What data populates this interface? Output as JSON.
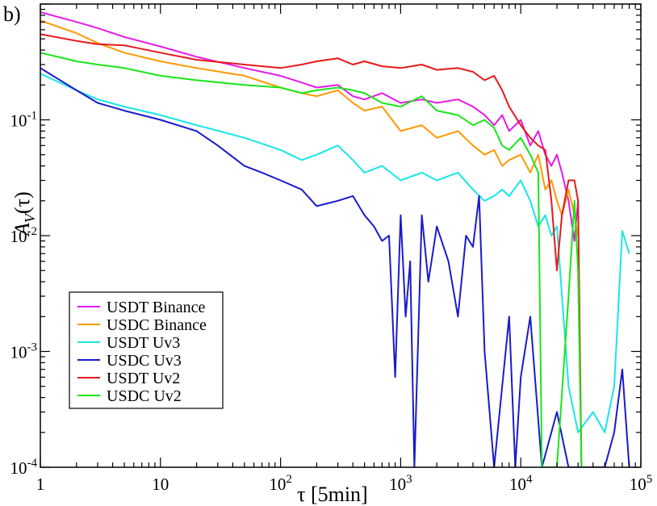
{
  "chart_data": {
    "type": "line",
    "panel_label": "b)",
    "xlabel": "τ [5min]",
    "ylabel_main": "A",
    "ylabel_sub": "V",
    "ylabel_arg": "(τ)",
    "xscale": "log",
    "yscale": "log",
    "xlim": [
      1,
      100000
    ],
    "ylim": [
      0.0001,
      1
    ],
    "x_tick_labels": [
      {
        "value": 1,
        "base": "1",
        "exp": ""
      },
      {
        "value": 10,
        "base": "10",
        "exp": ""
      },
      {
        "value": 100,
        "base": "10",
        "exp": "2"
      },
      {
        "value": 1000,
        "base": "10",
        "exp": "3"
      },
      {
        "value": 10000,
        "base": "10",
        "exp": "4"
      },
      {
        "value": 100000,
        "base": "10",
        "exp": "5"
      }
    ],
    "y_tick_labels": [
      {
        "value": 0.1,
        "base": "10",
        "exp": "-1"
      },
      {
        "value": 0.01,
        "base": "10",
        "exp": "-2"
      },
      {
        "value": 0.001,
        "base": "10",
        "exp": "-3"
      },
      {
        "value": 0.0001,
        "base": "10",
        "exp": "-4"
      }
    ],
    "legend_position": "lower-left",
    "series": [
      {
        "name": "USDT Binance",
        "color": "#e619e6",
        "x": [
          1,
          2,
          3,
          5,
          10,
          20,
          50,
          100,
          150,
          200,
          300,
          400,
          500,
          700,
          1000,
          1500,
          2000,
          3000,
          4000,
          5000,
          6000,
          7000,
          8000,
          10000,
          12000,
          14000,
          16000,
          18000,
          20000,
          22000,
          25000,
          28000,
          30000
        ],
        "y": [
          0.85,
          0.7,
          0.62,
          0.52,
          0.43,
          0.35,
          0.28,
          0.24,
          0.21,
          0.19,
          0.2,
          0.16,
          0.15,
          0.17,
          0.14,
          0.15,
          0.14,
          0.15,
          0.13,
          0.11,
          0.09,
          0.11,
          0.08,
          0.1,
          0.06,
          0.08,
          0.05,
          0.04,
          0.05,
          0.035,
          0.02,
          0.009,
          0.02
        ]
      },
      {
        "name": "USDC Binance",
        "color": "#ff9900",
        "x": [
          1,
          2,
          3,
          5,
          10,
          20,
          50,
          100,
          150,
          200,
          300,
          400,
          500,
          700,
          1000,
          1500,
          2000,
          3000,
          4000,
          5000,
          6000,
          7000,
          8000,
          10000,
          12000,
          14000,
          16000,
          18000,
          20000,
          22000,
          25000,
          28000,
          30000
        ],
        "y": [
          0.72,
          0.56,
          0.46,
          0.38,
          0.32,
          0.28,
          0.24,
          0.19,
          0.17,
          0.16,
          0.18,
          0.14,
          0.12,
          0.13,
          0.08,
          0.09,
          0.07,
          0.08,
          0.06,
          0.05,
          0.055,
          0.04,
          0.045,
          0.05,
          0.035,
          0.05,
          0.025,
          0.03,
          0.02,
          0.015,
          0.025,
          0.015,
          0.01
        ]
      },
      {
        "name": "USDT Uv3",
        "color": "#19e6e6",
        "x": [
          1,
          2,
          3,
          5,
          10,
          20,
          50,
          100,
          150,
          200,
          300,
          400,
          500,
          700,
          1000,
          1500,
          2000,
          3000,
          4000,
          5000,
          6000,
          7000,
          8000,
          10000,
          12000,
          14000,
          16000,
          18000,
          20000,
          25000,
          30000,
          40000,
          50000,
          60000,
          70000,
          80000
        ],
        "y": [
          0.25,
          0.18,
          0.15,
          0.13,
          0.11,
          0.09,
          0.07,
          0.055,
          0.045,
          0.05,
          0.06,
          0.045,
          0.035,
          0.04,
          0.03,
          0.035,
          0.03,
          0.035,
          0.025,
          0.02,
          0.022,
          0.025,
          0.022,
          0.03,
          0.02,
          0.012,
          0.015,
          0.01,
          0.012,
          0.0005,
          0.0002,
          0.0003,
          0.0002,
          0.0005,
          0.011,
          0.007
        ]
      },
      {
        "name": "USDC Uv3",
        "color": "#1a1acc",
        "x": [
          1,
          2,
          3,
          5,
          10,
          20,
          30,
          50,
          70,
          100,
          150,
          200,
          300,
          400,
          500,
          600,
          700,
          800,
          900,
          1000,
          1100,
          1200,
          1300,
          1500,
          1700,
          2000,
          2500,
          3000,
          3500,
          4000,
          4500,
          5000,
          6000,
          7000,
          8000,
          9000,
          10000,
          12000,
          15000,
          20000,
          25000,
          30000,
          35000,
          40000,
          50000,
          60000,
          70000,
          80000
        ],
        "y": [
          0.28,
          0.18,
          0.14,
          0.12,
          0.1,
          0.08,
          0.06,
          0.04,
          0.035,
          0.03,
          0.025,
          0.018,
          0.02,
          0.022,
          0.015,
          0.012,
          0.009,
          0.01,
          0.0006,
          0.015,
          0.002,
          0.006,
          0.0001,
          0.015,
          0.004,
          0.012,
          0.006,
          0.002,
          0.01,
          0.008,
          0.022,
          0.001,
          0.0001,
          0.0005,
          0.002,
          0.0001,
          0.0006,
          0.002,
          0.0001,
          0.0003,
          0.0001,
          0.0001,
          0.0001,
          0.0001,
          0.0001,
          0.0002,
          0.0007,
          0.0001
        ]
      },
      {
        "name": "USDT Uv2",
        "color": "#e61919",
        "x": [
          1,
          2,
          3,
          5,
          10,
          20,
          50,
          100,
          150,
          200,
          300,
          400,
          500,
          700,
          1000,
          1500,
          2000,
          3000,
          4000,
          5000,
          6000,
          7000,
          8000,
          10000,
          12000,
          14000,
          16000,
          18000,
          20000,
          22000,
          25000,
          28000,
          30000,
          32000
        ],
        "y": [
          0.55,
          0.48,
          0.45,
          0.44,
          0.38,
          0.33,
          0.3,
          0.28,
          0.3,
          0.32,
          0.34,
          0.3,
          0.32,
          0.29,
          0.28,
          0.3,
          0.27,
          0.28,
          0.26,
          0.22,
          0.24,
          0.18,
          0.13,
          0.09,
          0.07,
          0.06,
          0.055,
          0.02,
          0.005,
          0.015,
          0.03,
          0.03,
          0.02,
          0.0001
        ]
      },
      {
        "name": "USDC Uv2",
        "color": "#19e619",
        "x": [
          1,
          2,
          3,
          5,
          10,
          20,
          50,
          100,
          150,
          200,
          300,
          400,
          500,
          700,
          1000,
          1500,
          2000,
          3000,
          4000,
          5000,
          6000,
          7000,
          8000,
          10000,
          12000,
          14000,
          15000,
          16000,
          18000,
          20000,
          25000,
          28000,
          30000,
          32000
        ],
        "y": [
          0.38,
          0.32,
          0.3,
          0.28,
          0.24,
          0.22,
          0.2,
          0.19,
          0.17,
          0.18,
          0.19,
          0.18,
          0.17,
          0.14,
          0.13,
          0.16,
          0.12,
          0.11,
          0.09,
          0.1,
          0.085,
          0.06,
          0.055,
          0.07,
          0.05,
          0.035,
          0.0001,
          0.0001,
          0.0001,
          0.0001,
          0.003,
          0.02,
          0.005,
          0.0001
        ]
      }
    ]
  }
}
